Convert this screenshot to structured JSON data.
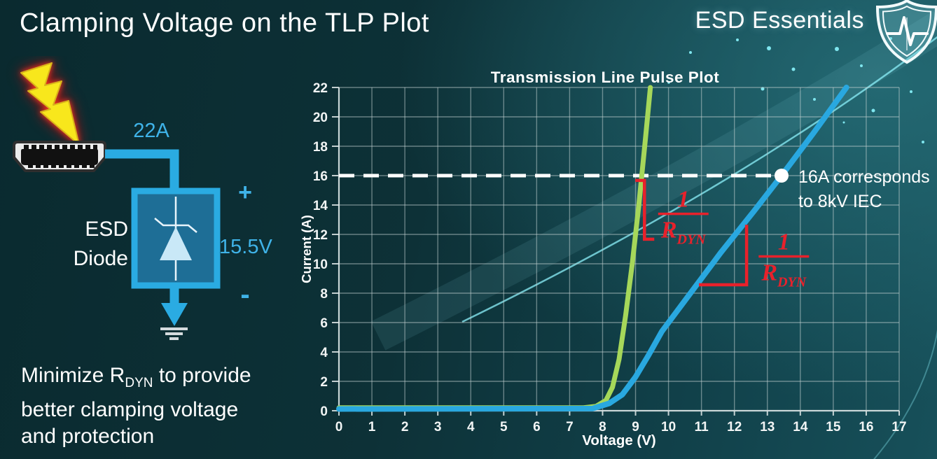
{
  "slide": {
    "title": "Clamping Voltage on the TLP Plot",
    "brand": "ESD Essentials",
    "note": {
      "l1_pre": "Minimize R",
      "l1_sub": "DYN",
      "l1_post": " to provide",
      "l2": "better clamping voltage",
      "l3": "and protection"
    }
  },
  "diagram": {
    "surge_label": "22A",
    "device_l1": "ESD",
    "device_l2": "Diode",
    "plus": "+",
    "voltage": "15.5V",
    "minus": "-",
    "colors": {
      "wire": "#2aabe2",
      "bolt": "#f8e71c",
      "device_fill": "#1e6e96",
      "cyan_text": "#3fb3e8"
    }
  },
  "chart_data": {
    "type": "line",
    "title": "Transmission Line Pulse Plot",
    "xlabel": "Voltage (V)",
    "ylabel": "Current (A)",
    "xlim": [
      0,
      17
    ],
    "ylim": [
      0,
      22
    ],
    "x_ticks": [
      0,
      1,
      2,
      3,
      4,
      5,
      6,
      7,
      8,
      9,
      10,
      11,
      12,
      13,
      14,
      15,
      16,
      17
    ],
    "y_ticks": [
      0,
      2,
      4,
      6,
      8,
      10,
      12,
      14,
      16,
      18,
      20,
      22
    ],
    "grid": true,
    "legend": "none",
    "series": [
      {
        "name": "low-rdyn-diode-green",
        "color": "#a6d75a",
        "width": 7,
        "points": [
          [
            0,
            0.2
          ],
          [
            7.4,
            0.2
          ],
          [
            7.8,
            0.3
          ],
          [
            8.1,
            0.7
          ],
          [
            8.3,
            1.6
          ],
          [
            8.5,
            3.5
          ],
          [
            8.7,
            6.5
          ],
          [
            8.9,
            10
          ],
          [
            9.1,
            14
          ],
          [
            9.3,
            18.5
          ],
          [
            9.45,
            22
          ]
        ]
      },
      {
        "name": "high-rdyn-diode-blue",
        "color": "#29a8e0",
        "width": 8,
        "points": [
          [
            0,
            0.12
          ],
          [
            7.7,
            0.15
          ],
          [
            8.2,
            0.5
          ],
          [
            8.6,
            1.1
          ],
          [
            9.0,
            2.3
          ],
          [
            9.4,
            3.8
          ],
          [
            9.8,
            5.4
          ],
          [
            10.6,
            7.8
          ],
          [
            11.6,
            10.8
          ],
          [
            12.6,
            13.6
          ],
          [
            13.43,
            16
          ],
          [
            14.4,
            18.9
          ],
          [
            15.4,
            22
          ]
        ]
      }
    ],
    "ref_line": {
      "y": 16,
      "x_start": 0,
      "x_end": 13.43,
      "color": "#ffffff",
      "dash": [
        22,
        13
      ],
      "width": 5
    },
    "marker": {
      "v": 13.43,
      "a": 16,
      "r": 10,
      "color": "#ffffff",
      "label1": "16A corresponds",
      "label2": "to 8kV IEC"
    },
    "annotations": [
      {
        "id": "green-slope",
        "color": "#e8212b",
        "bracket": [
          [
            9.04,
            15.67
          ],
          [
            9.27,
            15.67
          ],
          [
            9.27,
            11.67
          ],
          [
            9.52,
            11.67
          ]
        ],
        "frac_v": 10.45,
        "frac_a": 13.4,
        "num": "1",
        "den": "R",
        "den_sub": "DYN"
      },
      {
        "id": "blue-slope",
        "color": "#e8212b",
        "bracket": [
          [
            12.37,
            12.55
          ],
          [
            12.37,
            8.57
          ],
          [
            10.97,
            8.57
          ]
        ],
        "frac_v": 13.5,
        "frac_a": 10.5,
        "num": "1",
        "den": "R",
        "den_sub": "DYN"
      }
    ]
  }
}
